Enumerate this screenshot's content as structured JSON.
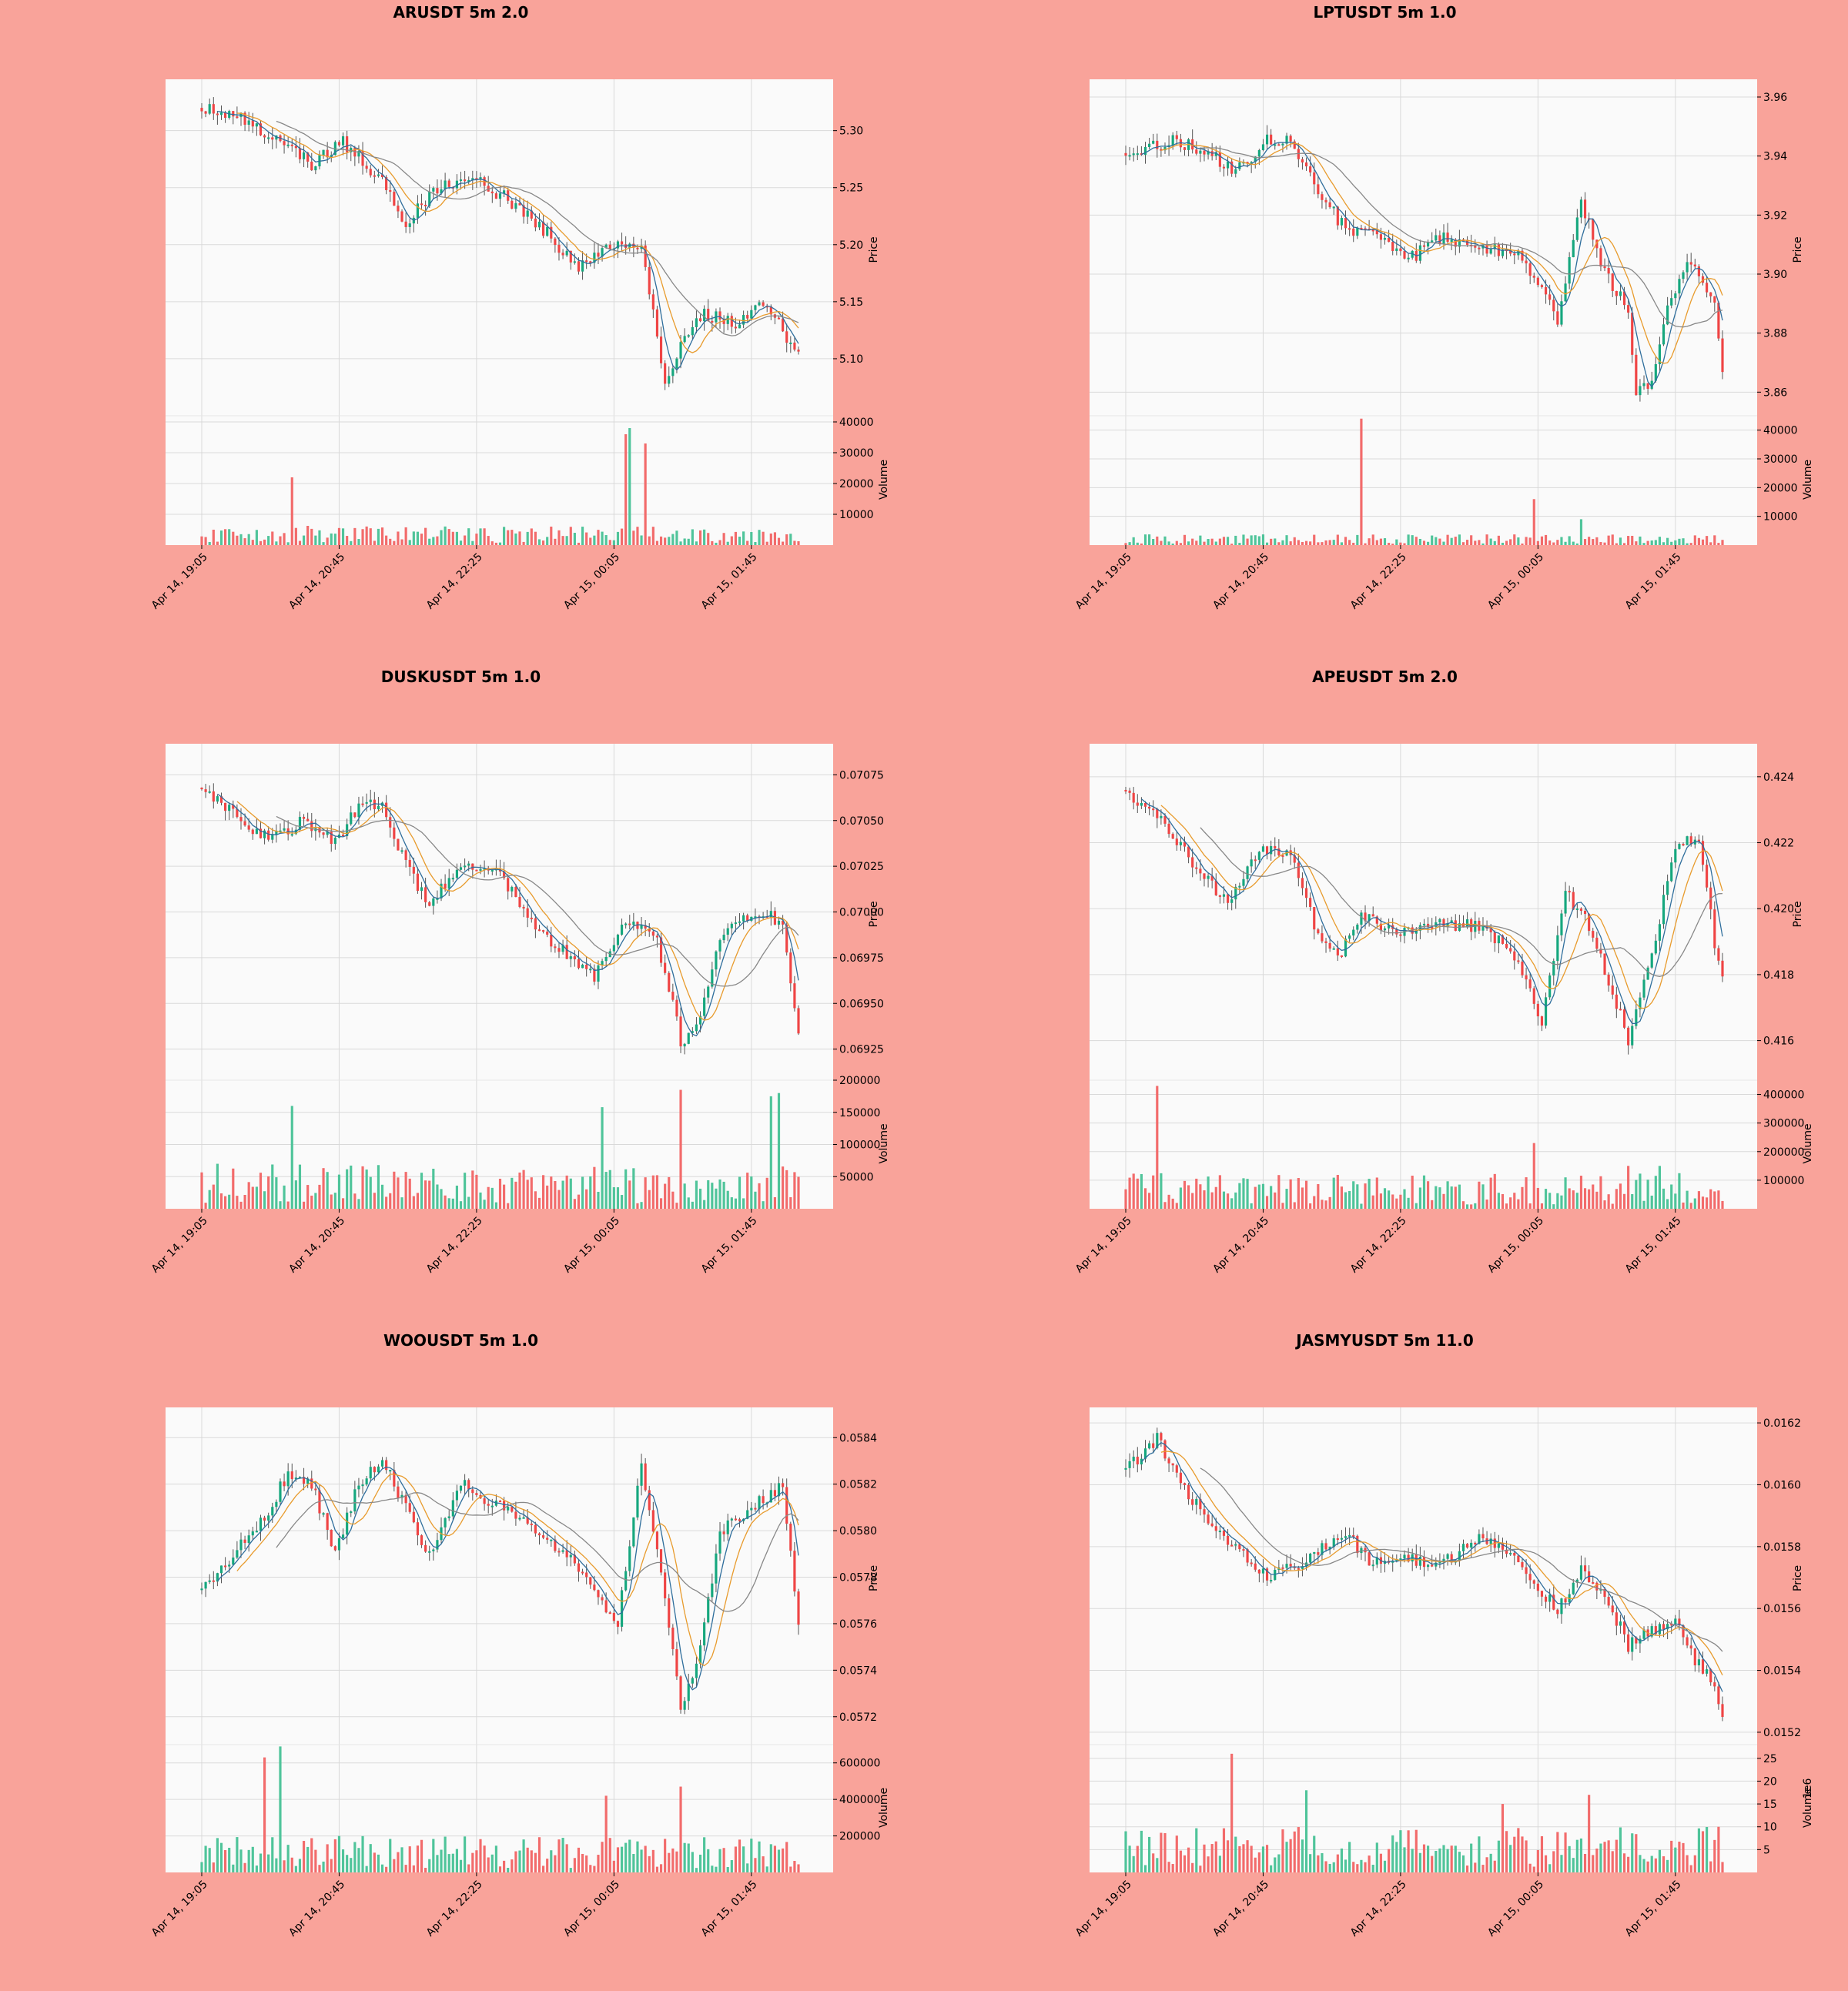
{
  "colors": {
    "background": "#f9a39a",
    "plot_bg": "#fafafa",
    "grid": "#d9d9d9",
    "up": "#16a77e",
    "down": "#ef4444",
    "vol_up": "#4fc49a",
    "vol_down": "#f26b6b",
    "ma_fast": "#2f6e9c",
    "ma_mid": "#e89b2d",
    "ma_slow": "#888888"
  },
  "x_tick_labels": [
    "Apr 14, 19:05",
    "Apr 14, 20:45",
    "Apr 14, 22:25",
    "Apr 15, 00:05",
    "Apr 15, 01:45"
  ],
  "price_axis_label": "Price",
  "volume_axis_label": "Volume",
  "chart_data": [
    {
      "type": "candlestick",
      "title": "ARUSDT 5m 2.0",
      "ylim": [
        5.05,
        5.345
      ],
      "yticks": [
        "5.10",
        "5.15",
        "5.20",
        "5.25",
        "5.30"
      ],
      "vol_ylim": [
        0,
        42000
      ],
      "vol_ticks": [
        "10000",
        "20000",
        "30000",
        "40000"
      ],
      "start": 5.32,
      "path": [
        [
          0,
          5.32
        ],
        [
          10,
          5.31
        ],
        [
          20,
          5.29
        ],
        [
          28,
          5.27
        ],
        [
          36,
          5.29
        ],
        [
          45,
          5.26
        ],
        [
          52,
          5.22
        ],
        [
          60,
          5.25
        ],
        [
          68,
          5.26
        ],
        [
          78,
          5.24
        ],
        [
          88,
          5.21
        ],
        [
          96,
          5.18
        ],
        [
          104,
          5.2
        ],
        [
          112,
          5.2
        ],
        [
          116,
          5.12
        ],
        [
          118,
          5.08
        ],
        [
          122,
          5.11
        ],
        [
          128,
          5.14
        ],
        [
          136,
          5.13
        ],
        [
          144,
          5.15
        ],
        [
          150,
          5.11
        ]
      ],
      "vol_base": 2500,
      "vol_spikes": [
        [
          23,
          22000
        ],
        [
          108,
          36000
        ],
        [
          109,
          38000
        ],
        [
          113,
          33000
        ]
      ]
    },
    {
      "type": "candlestick",
      "title": "LPTUSDT 5m 1.0",
      "ylim": [
        3.852,
        3.966
      ],
      "yticks": [
        "3.86",
        "3.88",
        "3.90",
        "3.92",
        "3.94",
        "3.96"
      ],
      "vol_ylim": [
        0,
        45000
      ],
      "vol_ticks": [
        "10000",
        "20000",
        "30000",
        "40000"
      ],
      "start": 3.941,
      "path": [
        [
          0,
          3.941
        ],
        [
          12,
          3.945
        ],
        [
          20,
          3.942
        ],
        [
          28,
          3.935
        ],
        [
          36,
          3.945
        ],
        [
          42,
          3.945
        ],
        [
          48,
          3.93
        ],
        [
          56,
          3.915
        ],
        [
          64,
          3.915
        ],
        [
          72,
          3.905
        ],
        [
          80,
          3.912
        ],
        [
          90,
          3.91
        ],
        [
          100,
          3.906
        ],
        [
          104,
          3.9
        ],
        [
          110,
          3.885
        ],
        [
          116,
          3.925
        ],
        [
          122,
          3.9
        ],
        [
          128,
          3.888
        ],
        [
          130,
          3.86
        ],
        [
          134,
          3.862
        ],
        [
          138,
          3.89
        ],
        [
          144,
          3.905
        ],
        [
          150,
          3.89
        ],
        [
          152,
          3.868
        ]
      ],
      "vol_base": 1500,
      "vol_spikes": [
        [
          60,
          44000
        ],
        [
          104,
          16000
        ],
        [
          116,
          9000
        ]
      ]
    },
    {
      "type": "candlestick",
      "title": "DUSKUSDT 5m 1.0",
      "ylim": [
        0.06908,
        0.07092
      ],
      "yticks": [
        "0.06925",
        "0.06950",
        "0.06975",
        "0.07000",
        "0.07025",
        "0.07050",
        "0.07075"
      ],
      "vol_ylim": [
        0,
        200000
      ],
      "vol_ticks": [
        "50000",
        "100000",
        "150000",
        "200000"
      ],
      "start": 0.07068,
      "path": [
        [
          0,
          0.07068
        ],
        [
          10,
          0.0705
        ],
        [
          18,
          0.0704
        ],
        [
          26,
          0.0705
        ],
        [
          34,
          0.07038
        ],
        [
          40,
          0.07058
        ],
        [
          46,
          0.07058
        ],
        [
          52,
          0.07025
        ],
        [
          58,
          0.07005
        ],
        [
          66,
          0.07025
        ],
        [
          76,
          0.0702
        ],
        [
          86,
          0.0699
        ],
        [
          100,
          0.06965
        ],
        [
          108,
          0.06995
        ],
        [
          116,
          0.06985
        ],
        [
          122,
          0.0693
        ],
        [
          126,
          0.06935
        ],
        [
          132,
          0.06985
        ],
        [
          138,
          0.06995
        ],
        [
          144,
          0.07
        ],
        [
          148,
          0.0699
        ],
        [
          152,
          0.06935
        ]
      ],
      "vol_base": 28000,
      "vol_spikes": [
        [
          23,
          160000
        ],
        [
          102,
          158000
        ],
        [
          122,
          185000
        ],
        [
          145,
          175000
        ],
        [
          147,
          180000
        ]
      ]
    },
    {
      "type": "candlestick",
      "title": "APEUSDT 5m 2.0",
      "ylim": [
        0.4148,
        0.425
      ],
      "yticks": [
        "0.416",
        "0.418",
        "0.420",
        "0.422",
        "0.424"
      ],
      "vol_ylim": [
        0,
        450000
      ],
      "vol_ticks": [
        "100000",
        "200000",
        "300000",
        "400000"
      ],
      "start": 0.4236,
      "path": [
        [
          0,
          0.4236
        ],
        [
          10,
          0.4225
        ],
        [
          18,
          0.4212
        ],
        [
          26,
          0.4202
        ],
        [
          34,
          0.4218
        ],
        [
          42,
          0.4218
        ],
        [
          48,
          0.4195
        ],
        [
          54,
          0.4185
        ],
        [
          60,
          0.4198
        ],
        [
          70,
          0.4192
        ],
        [
          80,
          0.4195
        ],
        [
          90,
          0.4195
        ],
        [
          100,
          0.4185
        ],
        [
          106,
          0.4165
        ],
        [
          112,
          0.4205
        ],
        [
          118,
          0.4195
        ],
        [
          124,
          0.4175
        ],
        [
          128,
          0.416
        ],
        [
          134,
          0.4185
        ],
        [
          140,
          0.422
        ],
        [
          146,
          0.4222
        ],
        [
          150,
          0.419
        ],
        [
          152,
          0.418
        ]
      ],
      "vol_base": 50000,
      "vol_spikes": [
        [
          8,
          430000
        ],
        [
          104,
          230000
        ],
        [
          128,
          150000
        ],
        [
          136,
          150000
        ]
      ]
    },
    {
      "type": "candlestick",
      "title": "WOOUSDT 5m 1.0",
      "ylim": [
        0.05708,
        0.05853
      ],
      "yticks": [
        "0.0572",
        "0.0574",
        "0.0576",
        "0.0578",
        "0.0580",
        "0.0582",
        "0.0584"
      ],
      "vol_ylim": [
        0,
        700000
      ],
      "vol_ticks": [
        "200000",
        "400000",
        "600000"
      ],
      "start": 0.05775,
      "path": [
        [
          0,
          0.05775
        ],
        [
          8,
          0.0579
        ],
        [
          16,
          0.05805
        ],
        [
          22,
          0.05825
        ],
        [
          28,
          0.0582
        ],
        [
          34,
          0.0579
        ],
        [
          40,
          0.0582
        ],
        [
          46,
          0.0583
        ],
        [
          52,
          0.0581
        ],
        [
          58,
          0.0579
        ],
        [
          66,
          0.0582
        ],
        [
          76,
          0.0581
        ],
        [
          86,
          0.058
        ],
        [
          96,
          0.05785
        ],
        [
          100,
          0.05775
        ],
        [
          106,
          0.0576
        ],
        [
          112,
          0.0583
        ],
        [
          118,
          0.0577
        ],
        [
          122,
          0.05725
        ],
        [
          126,
          0.0574
        ],
        [
          132,
          0.058
        ],
        [
          140,
          0.0581
        ],
        [
          148,
          0.0582
        ],
        [
          152,
          0.0576
        ]
      ],
      "vol_base": 80000,
      "vol_spikes": [
        [
          16,
          630000
        ],
        [
          20,
          690000
        ],
        [
          103,
          420000
        ],
        [
          122,
          470000
        ]
      ]
    },
    {
      "type": "candlestick",
      "title": "JASMYUSDT 5m 11.0",
      "ylim": [
        0.01516,
        0.01625
      ],
      "yticks": [
        "0.0152",
        "0.0154",
        "0.0156",
        "0.0158",
        "0.0160",
        "0.0162"
      ],
      "vol_ylim": [
        0,
        28
      ],
      "vol_ticks": [
        "5",
        "10",
        "15",
        "20",
        "25"
      ],
      "vol_exponent": "6",
      "start": 0.01605,
      "path": [
        [
          0,
          0.01605
        ],
        [
          8,
          0.01615
        ],
        [
          14,
          0.016
        ],
        [
          20,
          0.0159
        ],
        [
          28,
          0.0158
        ],
        [
          36,
          0.0157
        ],
        [
          46,
          0.01575
        ],
        [
          56,
          0.01585
        ],
        [
          62,
          0.01575
        ],
        [
          70,
          0.01577
        ],
        [
          80,
          0.01574
        ],
        [
          90,
          0.01582
        ],
        [
          98,
          0.01578
        ],
        [
          104,
          0.01568
        ],
        [
          110,
          0.0156
        ],
        [
          116,
          0.01572
        ],
        [
          122,
          0.01565
        ],
        [
          128,
          0.01548
        ],
        [
          134,
          0.01553
        ],
        [
          140,
          0.01555
        ],
        [
          144,
          0.01545
        ],
        [
          150,
          0.01535
        ],
        [
          152,
          0.01525
        ]
      ],
      "vol_base": 4,
      "vol_spikes": [
        [
          27,
          26
        ],
        [
          46,
          18
        ],
        [
          96,
          15
        ],
        [
          118,
          17
        ]
      ]
    }
  ]
}
